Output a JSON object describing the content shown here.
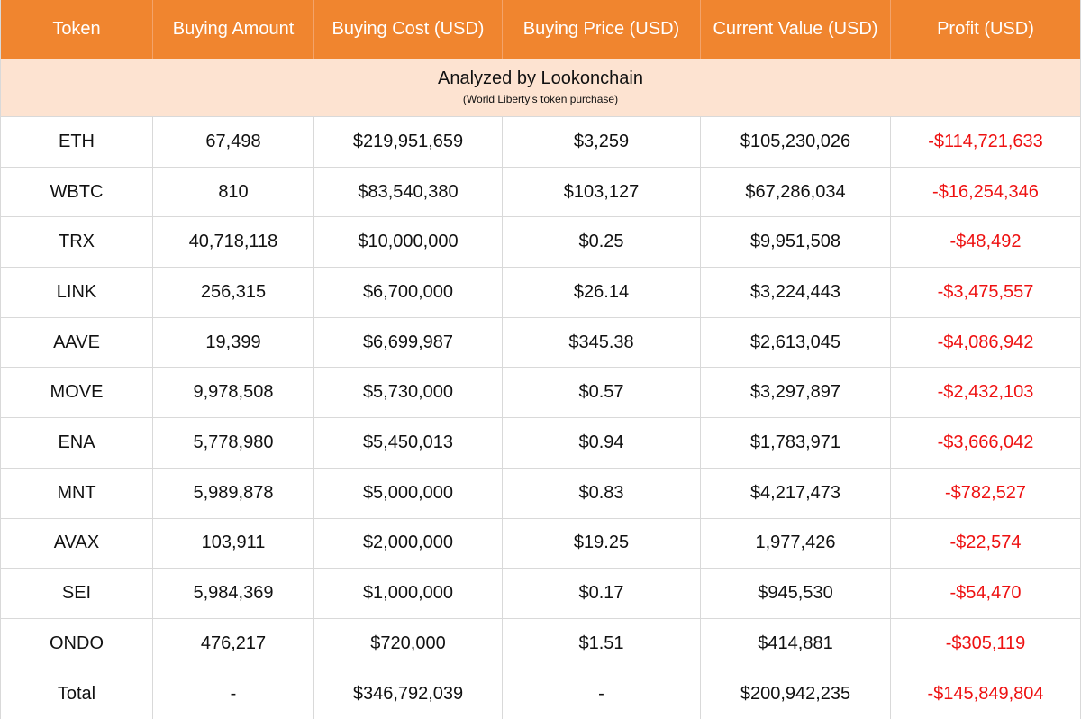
{
  "table": {
    "headers": [
      "Token",
      "Buying Amount",
      "Buying Cost (USD)",
      "Buying Price (USD)",
      "Current Value (USD)",
      "Profit (USD)"
    ],
    "banner": {
      "title": "Analyzed by Lookonchain",
      "subtitle": "(World Liberty's token purchase)"
    },
    "rows": [
      [
        "ETH",
        "67,498",
        "$219,951,659",
        "$3,259",
        "$105,230,026",
        "-$114,721,633"
      ],
      [
        "WBTC",
        "810",
        "$83,540,380",
        "$103,127",
        "$67,286,034",
        "-$16,254,346"
      ],
      [
        "TRX",
        "40,718,118",
        "$10,000,000",
        "$0.25",
        "$9,951,508",
        "-$48,492"
      ],
      [
        "LINK",
        "256,315",
        "$6,700,000",
        "$26.14",
        "$3,224,443",
        "-$3,475,557"
      ],
      [
        "AAVE",
        "19,399",
        "$6,699,987",
        "$345.38",
        "$2,613,045",
        "-$4,086,942"
      ],
      [
        "MOVE",
        "9,978,508",
        "$5,730,000",
        "$0.57",
        "$3,297,897",
        "-$2,432,103"
      ],
      [
        "ENA",
        "5,778,980",
        "$5,450,013",
        "$0.94",
        "$1,783,971",
        "-$3,666,042"
      ],
      [
        "MNT",
        "5,989,878",
        "$5,000,000",
        "$0.83",
        "$4,217,473",
        "-$782,527"
      ],
      [
        "AVAX",
        "103,911",
        "$2,000,000",
        "$19.25",
        "1,977,426",
        "-$22,574"
      ],
      [
        "SEI",
        "5,984,369",
        "$1,000,000",
        "$0.17",
        "$945,530",
        "-$54,470"
      ],
      [
        "ONDO",
        "476,217",
        "$720,000",
        "$1.51",
        "$414,881",
        "-$305,119"
      ],
      [
        "Total",
        "-",
        "$346,792,039",
        "-",
        "$200,942,235",
        "-$145,849,804"
      ]
    ]
  },
  "colors": {
    "header_bg": "#f0852f",
    "banner_bg": "#fde3d1",
    "profit_text": "#ee1111"
  }
}
